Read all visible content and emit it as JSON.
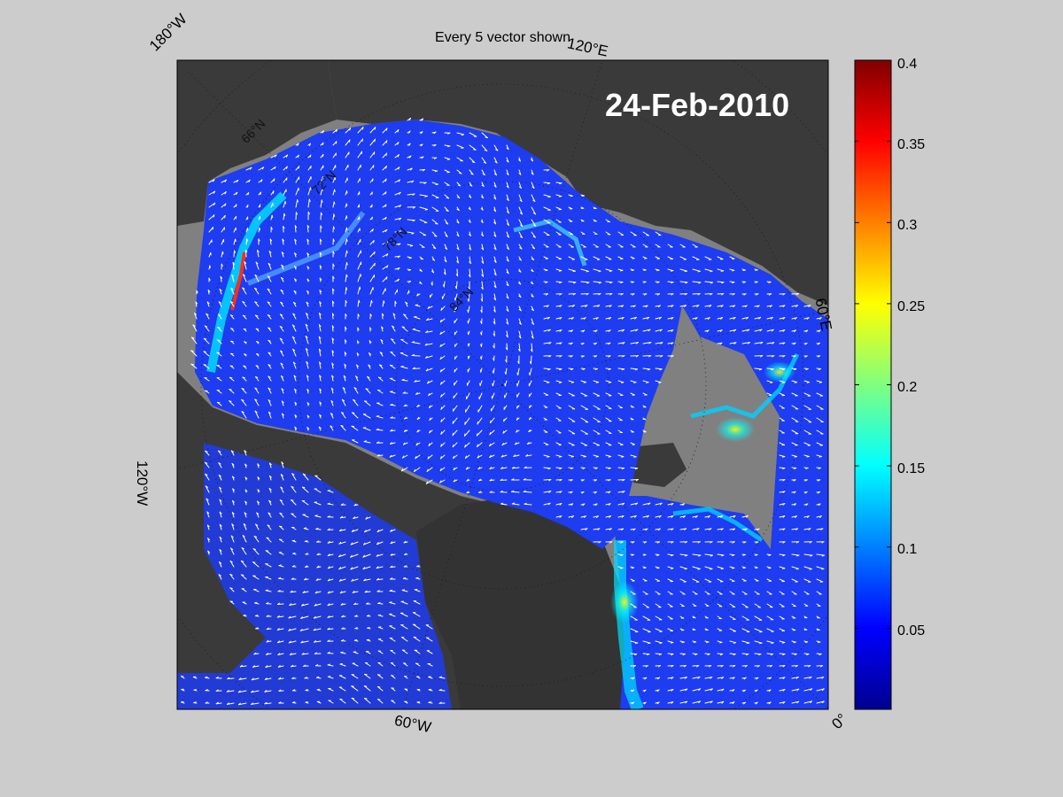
{
  "map": {
    "title": "Every 5 vector shown",
    "date_label": "24-Feb-2010",
    "lon_labels": [
      "180°W",
      "120°E",
      "60°E",
      "0°",
      "60°W",
      "120°W"
    ],
    "lat_labels": [
      "66°N",
      "72°N",
      "78°N",
      "84°N"
    ],
    "colors": {
      "land": "#3a3a3a",
      "ocean_background": "#808080",
      "page_background": "#cccccc",
      "vector": "#ffffff"
    }
  },
  "colorbar": {
    "colormap": "jet",
    "min": 0,
    "max": 0.4,
    "ticks": [
      "0.4",
      "0.35",
      "0.3",
      "0.25",
      "0.2",
      "0.15",
      "0.1",
      "0.05"
    ]
  }
}
